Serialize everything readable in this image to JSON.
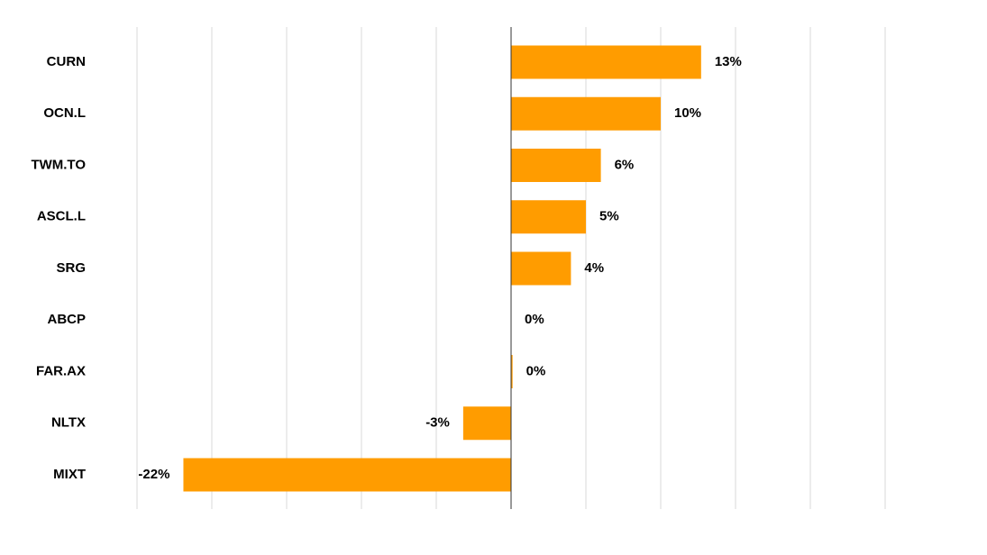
{
  "chart_data": {
    "type": "hbar",
    "categories": [
      "CURN",
      "OCN.L",
      "TWM.TO",
      "ASCL.L",
      "SRG",
      "ABCP",
      "FAR.AX",
      "NLTX",
      "MIXT"
    ],
    "values": [
      12.7,
      10,
      6,
      5,
      4,
      0,
      0.1,
      -3.2,
      -21.9
    ],
    "value_labels": [
      "13%",
      "10%",
      "6%",
      "5%",
      "4%",
      "0%",
      "0%",
      "-3%",
      "-22%"
    ],
    "color": "#ff9c00",
    "xlim": [
      -25,
      25
    ],
    "xticks": [
      -25,
      -20,
      -15,
      -10,
      -5,
      0,
      5,
      10,
      15,
      20,
      25
    ],
    "grid": true
  }
}
